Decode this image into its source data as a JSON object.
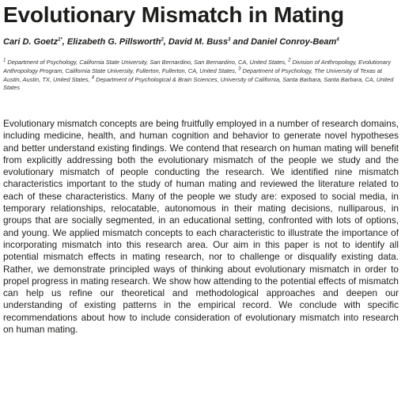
{
  "paper": {
    "title": "Evolutionary Mismatch in Mating",
    "authors": [
      {
        "name": "Cari D. Goetz",
        "mark": "1*",
        "sep": ", "
      },
      {
        "name": "Elizabeth G. Pillsworth",
        "mark": "2",
        "sep": ", "
      },
      {
        "name": "David M. Buss",
        "mark": "3",
        "sep": " and "
      },
      {
        "name": "Daniel Conroy-Beam",
        "mark": "4",
        "sep": ""
      }
    ],
    "affiliations": [
      {
        "mark": "1",
        "text": " Department of Psychology, California State University, San Bernardino, San Bernardino, CA, United States, "
      },
      {
        "mark": "2",
        "text": " Division of Anthropology, Evolutionary Anthropology Program, California State University, Fullerton, Fullerton, CA, United States, "
      },
      {
        "mark": "3",
        "text": " Department of Psychology, The University of Texas at Austin, Austin, TX, United States, "
      },
      {
        "mark": "4",
        "text": " Department of Psychological & Brain Sciences, University of California, Santa Barbara, Santa Barbara, CA, United States"
      }
    ],
    "abstract": "Evolutionary mismatch concepts are being fruitfully employed in a number of research domains, including medicine, health, and human cognition and behavior to generate novel hypotheses and better understand existing findings. We contend that research on human mating will benefit from explicitly addressing both the evolutionary mismatch of the people we study and the evolutionary mismatch of people conducting the research. We identified nine mismatch characteristics important to the study of human mating and reviewed the literature related to each of these characteristics. Many of the people we study are: exposed to social media, in temporary relationships, relocatable, autonomous in their mating decisions, nulliparous, in groups that are socially segmented, in an educational setting, confronted with lots of options, and young. We applied mismatch concepts to each characteristic to illustrate the importance of incorporating mismatch into this research area. Our aim in this paper is not to identify all potential mismatch effects in mating research, nor to challenge or disqualify existing data. Rather, we demonstrate principled ways of thinking about evolutionary mismatch in order to propel progress in mating research. We show how attending to the potential effects of mismatch can help us refine our theoretical and methodological approaches and deepen our understanding of existing patterns in the empirical record. We conclude with specific recommendations about how to include consideration of evolutionary mismatch into research on human mating."
  }
}
